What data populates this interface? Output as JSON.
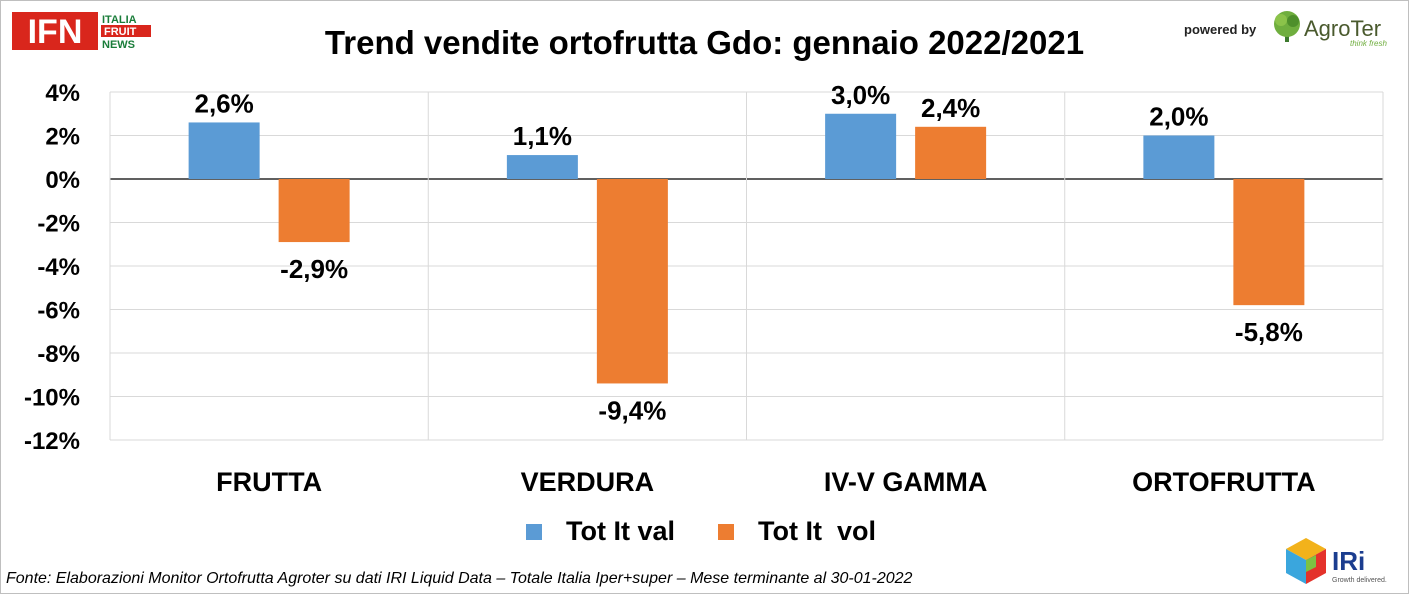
{
  "header": {
    "title": "Trend vendite ortofrutta Gdo: gennaio 2022/2021",
    "powered_by": "powered by",
    "ifn_logo": {
      "main": "IFN",
      "line1": "ITALIA",
      "line2": "FRUIT",
      "line3": "NEWS"
    },
    "agroter_logo": {
      "name": "AgroTer",
      "tagline": "think fresh",
      "icon": "tree-icon"
    }
  },
  "footer": {
    "source": "Fonte: Elaborazioni Monitor Ortofrutta Agroter su dati IRI Liquid Data – Totale Italia Iper+super – Mese terminante al 30-01-2022",
    "iri_logo": {
      "name": "IRi",
      "tagline": "Growth delivered.",
      "icon": "cube-icon"
    }
  },
  "colors": {
    "series_val": "#5B9BD5",
    "series_vol": "#ED7D31",
    "grid": "#d9d9d9",
    "axis": "#000000"
  },
  "chart_data": {
    "type": "bar",
    "title": "Trend vendite ortofrutta Gdo: gennaio 2022/2021",
    "categories": [
      "FRUTTA",
      "VERDURA",
      "IV-V GAMMA",
      "ORTOFRUTTA"
    ],
    "series": [
      {
        "name": "Tot It val",
        "values": [
          2.6,
          1.1,
          3.0,
          2.0
        ],
        "labels": [
          "2,6%",
          "1,1%",
          "3,0%",
          "2,0%"
        ]
      },
      {
        "name": "Tot It  vol",
        "values": [
          -2.9,
          -9.4,
          2.4,
          -5.8
        ],
        "labels": [
          "-2,9%",
          "-9,4%",
          "2,4%",
          "-5,8%"
        ]
      }
    ],
    "ylim": [
      -12,
      4
    ],
    "yticks": [
      4,
      2,
      0,
      -2,
      -4,
      -6,
      -8,
      -10,
      -12
    ],
    "ytick_labels": [
      "4%",
      "2%",
      "0%",
      "-2%",
      "-4%",
      "-6%",
      "-8%",
      "-10%",
      "-12%"
    ],
    "xlabel": "",
    "ylabel": "",
    "grid": true,
    "legend_position": "bottom"
  }
}
